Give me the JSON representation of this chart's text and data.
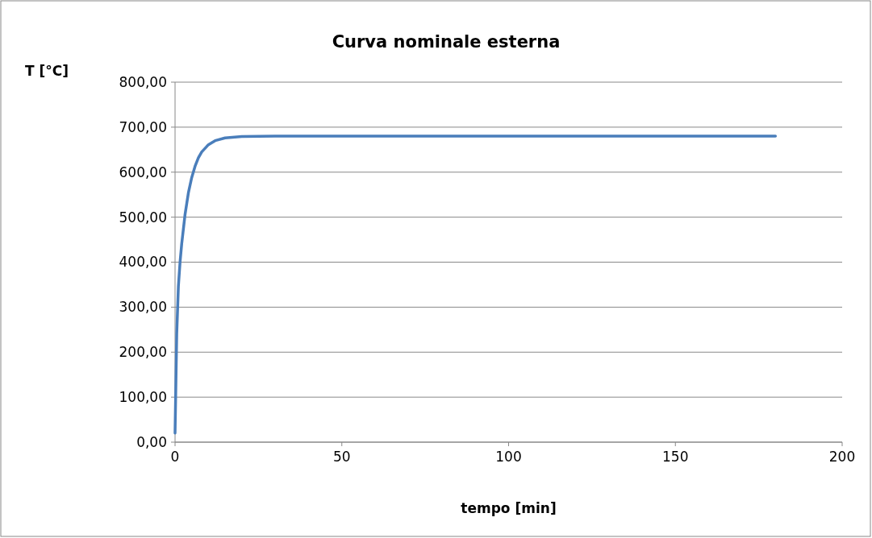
{
  "chart_data": {
    "type": "line",
    "title": "Curva nominale esterna",
    "xlabel": "tempo [min]",
    "ylabel": "T [°C]",
    "x": [
      0,
      0.5,
      1,
      1.5,
      2,
      3,
      4,
      5,
      6,
      7,
      8,
      10,
      12,
      15,
      20,
      30,
      60,
      100,
      150,
      180
    ],
    "series": [
      {
        "color": "#4a7ebb",
        "values": [
          20,
          240,
          346,
          400,
          441,
          506,
          554,
          588,
          613,
          632,
          645,
          661,
          670,
          676,
          679,
          680,
          680,
          680,
          680,
          680
        ]
      }
    ],
    "xlim": [
      0,
      200
    ],
    "xticks": [
      0,
      50,
      100,
      150,
      200
    ],
    "ylim": [
      0,
      800
    ],
    "yticks": [
      {
        "value": 0,
        "label": "0,00"
      },
      {
        "value": 100,
        "label": "100,00"
      },
      {
        "value": 200,
        "label": "200,00"
      },
      {
        "value": 300,
        "label": "300,00"
      },
      {
        "value": 400,
        "label": "400,00"
      },
      {
        "value": 500,
        "label": "500,00"
      },
      {
        "value": 600,
        "label": "600,00"
      },
      {
        "value": 700,
        "label": "700,00"
      },
      {
        "value": 800,
        "label": "800,00"
      }
    ],
    "grid": "y",
    "marker": "none",
    "line_style": "solid"
  }
}
